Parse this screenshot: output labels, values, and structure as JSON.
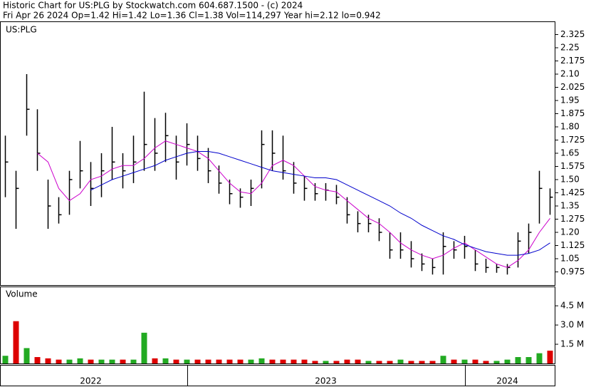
{
  "header": {
    "line1": "Historic Chart for US:PLG by Stockwatch.com 604.687.1500 - (c) 2024",
    "line2": "Fri Apr 26 2024   Op=1.42   Hi=1.42   Lo=1.36   Cl=1.38   Vol=114,297   Year hi=2.12   lo=0.942"
  },
  "chart_data": [
    {
      "type": "ohlc",
      "title": "US:PLG",
      "color": "#000000",
      "high": [
        1.75,
        1.55,
        2.1,
        1.9,
        1.5,
        1.4,
        1.55,
        1.72,
        1.6,
        1.65,
        1.8,
        1.65,
        1.75,
        2.0,
        1.85,
        1.88,
        1.75,
        1.82,
        1.75,
        1.68,
        1.58,
        1.5,
        1.45,
        1.5,
        1.78,
        1.78,
        1.75,
        1.6,
        1.52,
        1.48,
        1.48,
        1.47,
        1.4,
        1.32,
        1.3,
        1.28,
        1.2,
        1.2,
        1.15,
        1.08,
        1.05,
        1.2,
        1.15,
        1.18,
        1.1,
        1.05,
        1.02,
        1.02,
        1.2,
        1.25,
        1.55,
        1.45
      ],
      "low": [
        1.4,
        1.22,
        1.75,
        1.55,
        1.22,
        1.25,
        1.3,
        1.45,
        1.35,
        1.4,
        1.5,
        1.45,
        1.48,
        1.55,
        1.55,
        1.6,
        1.5,
        1.58,
        1.55,
        1.48,
        1.42,
        1.36,
        1.34,
        1.35,
        1.45,
        1.55,
        1.5,
        1.42,
        1.38,
        1.38,
        1.38,
        1.36,
        1.25,
        1.2,
        1.2,
        1.15,
        1.05,
        1.05,
        1.0,
        0.98,
        0.96,
        0.96,
        1.05,
        1.05,
        0.98,
        0.97,
        0.97,
        0.96,
        1.0,
        1.08,
        1.25,
        1.3
      ],
      "close": [
        1.6,
        1.45,
        1.9,
        1.65,
        1.35,
        1.3,
        1.5,
        1.55,
        1.45,
        1.55,
        1.6,
        1.55,
        1.6,
        1.7,
        1.65,
        1.75,
        1.6,
        1.7,
        1.62,
        1.55,
        1.48,
        1.42,
        1.4,
        1.45,
        1.7,
        1.65,
        1.55,
        1.48,
        1.45,
        1.42,
        1.44,
        1.4,
        1.3,
        1.25,
        1.25,
        1.2,
        1.1,
        1.1,
        1.05,
        1.02,
        1.0,
        1.12,
        1.1,
        1.12,
        1.02,
        1.0,
        1.0,
        1.0,
        1.15,
        1.2,
        1.45,
        1.4
      ],
      "moving_averages": [
        {
          "color": "#cc00cc",
          "values": [
            null,
            null,
            null,
            1.65,
            1.6,
            1.45,
            1.38,
            1.42,
            1.5,
            1.52,
            1.56,
            1.58,
            1.58,
            1.62,
            1.68,
            1.72,
            1.7,
            1.68,
            1.66,
            1.62,
            1.55,
            1.48,
            1.43,
            1.42,
            1.48,
            1.58,
            1.61,
            1.58,
            1.52,
            1.46,
            1.44,
            1.43,
            1.38,
            1.33,
            1.28,
            1.25,
            1.2,
            1.14,
            1.1,
            1.07,
            1.05,
            1.07,
            1.11,
            1.14,
            1.1,
            1.06,
            1.02,
            1.0,
            1.04,
            1.1,
            1.2,
            1.28
          ]
        },
        {
          "color": "#0000cc",
          "values": [
            null,
            null,
            null,
            null,
            null,
            null,
            null,
            null,
            1.44,
            1.47,
            1.5,
            1.52,
            1.54,
            1.56,
            1.58,
            1.61,
            1.63,
            1.65,
            1.66,
            1.66,
            1.65,
            1.63,
            1.61,
            1.59,
            1.57,
            1.55,
            1.54,
            1.53,
            1.52,
            1.51,
            1.51,
            1.5,
            1.47,
            1.44,
            1.41,
            1.38,
            1.35,
            1.31,
            1.28,
            1.24,
            1.21,
            1.18,
            1.16,
            1.13,
            1.11,
            1.09,
            1.08,
            1.07,
            1.07,
            1.08,
            1.1,
            1.14
          ]
        }
      ],
      "ylim": [
        0.9,
        2.4
      ],
      "yticks": [
        2.325,
        2.25,
        2.175,
        {
          "value": 2.1,
          "label": "2.10"
        },
        2.025,
        1.95,
        1.875,
        {
          "value": 1.8,
          "label": "1.80"
        },
        1.725,
        1.65,
        1.575,
        {
          "value": 1.5,
          "label": "1.50"
        },
        1.425,
        1.35,
        1.275,
        {
          "value": 1.2,
          "label": "1.20"
        },
        1.125,
        1.05,
        0.975
      ]
    },
    {
      "type": "bar",
      "title": "Volume",
      "up_color": "#22aa22",
      "down_color": "#dd0000",
      "categories": [
        null,
        null,
        null,
        null,
        null,
        null,
        null,
        null,
        "2022",
        null,
        null,
        null,
        null,
        null,
        null,
        null,
        null,
        null,
        null,
        null,
        null,
        null,
        null,
        null,
        null,
        null,
        null,
        null,
        null,
        null,
        "2023",
        null,
        null,
        null,
        null,
        null,
        null,
        null,
        null,
        null,
        null,
        null,
        null,
        null,
        null,
        null,
        null,
        "2024",
        null,
        null,
        null,
        null
      ],
      "values": [
        0.6,
        3.3,
        1.2,
        0.5,
        0.4,
        0.3,
        0.3,
        0.4,
        0.3,
        0.3,
        0.3,
        0.3,
        0.3,
        2.4,
        0.4,
        0.4,
        0.3,
        0.3,
        0.3,
        0.3,
        0.3,
        0.3,
        0.3,
        0.3,
        0.4,
        0.3,
        0.3,
        0.3,
        0.3,
        0.2,
        0.2,
        0.2,
        0.3,
        0.3,
        0.2,
        0.2,
        0.2,
        0.3,
        0.2,
        0.2,
        0.2,
        0.6,
        0.3,
        0.3,
        0.3,
        0.2,
        0.2,
        0.3,
        0.5,
        0.5,
        0.8,
        1.0
      ],
      "ylim": [
        0,
        5.95
      ],
      "yticks": [
        {
          "value": 4.5,
          "label": "4.5 M"
        },
        {
          "value": 3.0,
          "label": "3.0 M"
        },
        {
          "value": 1.5,
          "label": "1.5 M"
        }
      ]
    }
  ]
}
